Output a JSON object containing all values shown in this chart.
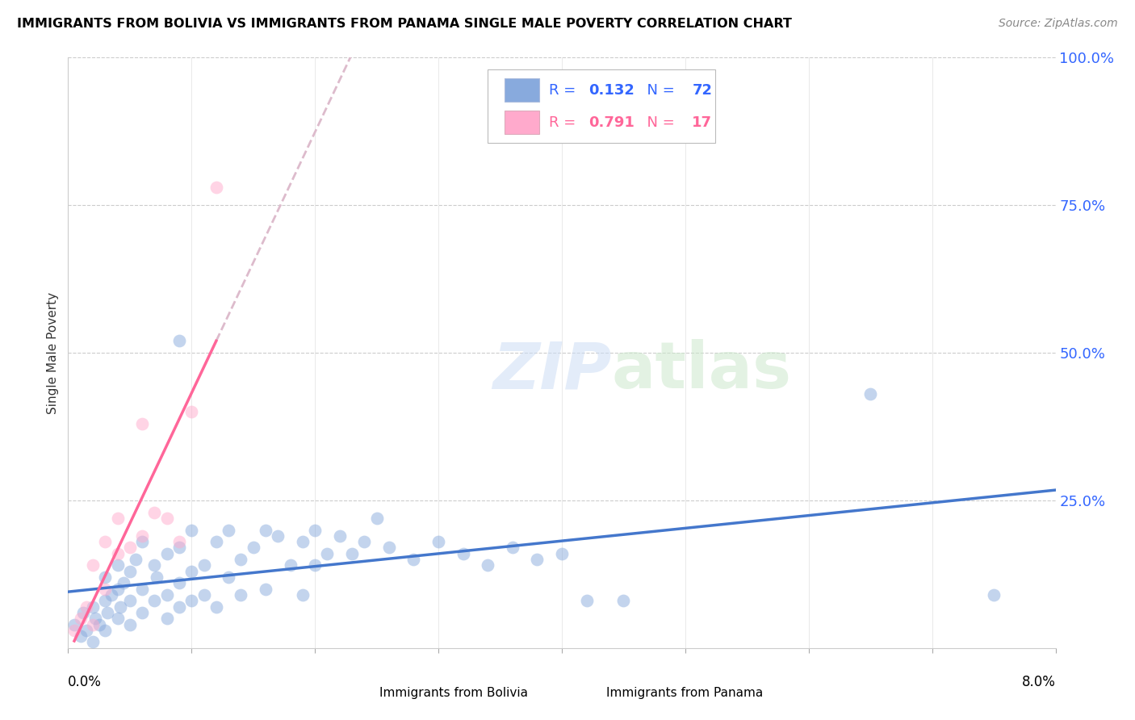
{
  "title": "IMMIGRANTS FROM BOLIVIA VS IMMIGRANTS FROM PANAMA SINGLE MALE POVERTY CORRELATION CHART",
  "source": "Source: ZipAtlas.com",
  "ylabel": "Single Male Poverty",
  "right_yticks": [
    "100.0%",
    "75.0%",
    "50.0%",
    "25.0%"
  ],
  "right_ytick_vals": [
    1.0,
    0.75,
    0.5,
    0.25
  ],
  "bolivia_color": "#88AADD",
  "panama_color": "#FFAACC",
  "bolivia_line_color": "#4477CC",
  "panama_line_color": "#FF6699",
  "bolivia_scatter_color": "#88AADD",
  "panama_scatter_color": "#FFAACC",
  "legend_text_color": "#3366FF",
  "panama_dash_color": "#DDBBCC",
  "bolivia_x": [
    0.0005,
    0.001,
    0.0012,
    0.0015,
    0.002,
    0.002,
    0.0022,
    0.0025,
    0.003,
    0.003,
    0.003,
    0.0032,
    0.0035,
    0.004,
    0.004,
    0.004,
    0.0042,
    0.0045,
    0.005,
    0.005,
    0.005,
    0.0055,
    0.006,
    0.006,
    0.006,
    0.007,
    0.007,
    0.0072,
    0.008,
    0.008,
    0.008,
    0.009,
    0.009,
    0.009,
    0.009,
    0.01,
    0.01,
    0.01,
    0.011,
    0.011,
    0.012,
    0.012,
    0.013,
    0.013,
    0.014,
    0.014,
    0.015,
    0.016,
    0.016,
    0.017,
    0.018,
    0.019,
    0.019,
    0.02,
    0.02,
    0.021,
    0.022,
    0.023,
    0.024,
    0.025,
    0.026,
    0.028,
    0.03,
    0.032,
    0.034,
    0.036,
    0.038,
    0.04,
    0.042,
    0.045,
    0.065,
    0.075
  ],
  "bolivia_y": [
    0.04,
    0.02,
    0.06,
    0.03,
    0.07,
    0.01,
    0.05,
    0.04,
    0.08,
    0.03,
    0.12,
    0.06,
    0.09,
    0.14,
    0.05,
    0.1,
    0.07,
    0.11,
    0.13,
    0.04,
    0.08,
    0.15,
    0.1,
    0.06,
    0.18,
    0.14,
    0.08,
    0.12,
    0.16,
    0.05,
    0.09,
    0.17,
    0.07,
    0.11,
    0.52,
    0.13,
    0.08,
    0.2,
    0.09,
    0.14,
    0.18,
    0.07,
    0.12,
    0.2,
    0.15,
    0.09,
    0.17,
    0.2,
    0.1,
    0.19,
    0.14,
    0.18,
    0.09,
    0.2,
    0.14,
    0.16,
    0.19,
    0.16,
    0.18,
    0.22,
    0.17,
    0.15,
    0.18,
    0.16,
    0.14,
    0.17,
    0.15,
    0.16,
    0.08,
    0.08,
    0.43,
    0.09
  ],
  "panama_x": [
    0.0005,
    0.001,
    0.0015,
    0.002,
    0.002,
    0.003,
    0.003,
    0.004,
    0.004,
    0.005,
    0.006,
    0.006,
    0.007,
    0.008,
    0.009,
    0.01,
    0.012
  ],
  "panama_y": [
    0.03,
    0.05,
    0.07,
    0.04,
    0.14,
    0.1,
    0.18,
    0.16,
    0.22,
    0.17,
    0.19,
    0.38,
    0.23,
    0.22,
    0.18,
    0.4,
    0.78
  ],
  "xlim": [
    0.0,
    0.08
  ],
  "ylim": [
    0.0,
    1.0
  ],
  "xtick_positions": [
    0.0,
    0.01,
    0.02,
    0.03,
    0.04,
    0.05,
    0.06,
    0.07,
    0.08
  ]
}
